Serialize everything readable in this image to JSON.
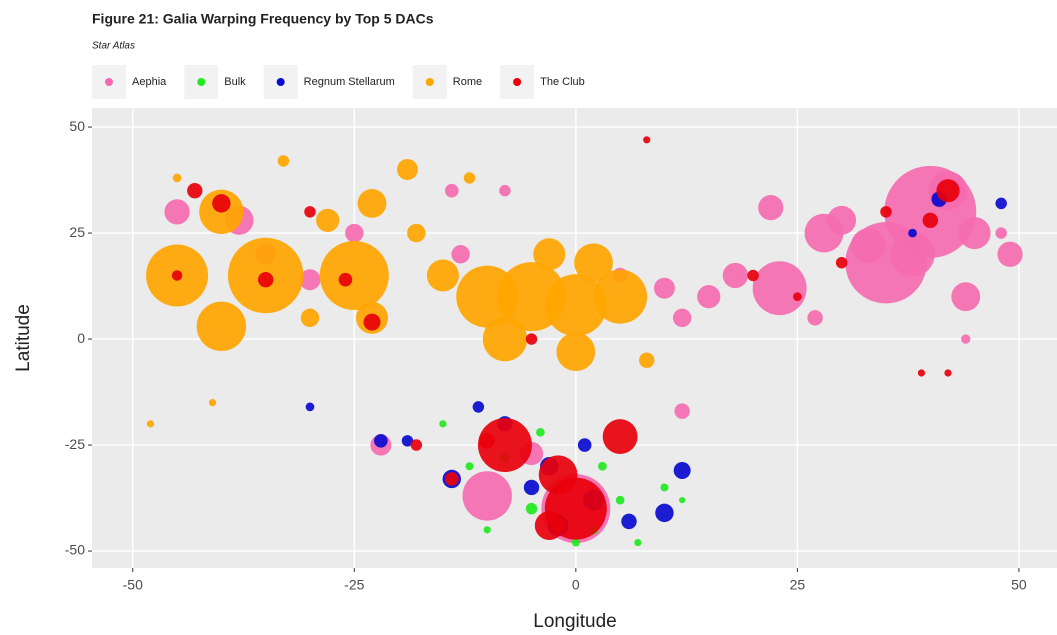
{
  "chart_data": {
    "type": "scatter",
    "title": "Figure 21: Galia Warping Frequency by Top 5 DACs",
    "subtitle": "Star Atlas",
    "x_label": "Longitude",
    "y_label": "Latitude",
    "xlim": [
      -54.6,
      54.3
    ],
    "ylim": [
      -54.0,
      54.5
    ],
    "xticks": [
      -50,
      -25,
      0,
      25,
      50
    ],
    "yticks": [
      -50,
      -25,
      0,
      25,
      50
    ],
    "grid": true,
    "legend": "top",
    "series": [
      {
        "name": "Aephia",
        "color": "#f46bb0",
        "x": [
          40,
          35,
          23,
          28,
          45,
          49,
          44,
          22,
          30,
          33,
          38,
          18,
          15,
          10,
          12,
          42,
          -45,
          -38,
          -30,
          -13,
          -8,
          -10,
          -22,
          0,
          -35,
          5,
          27,
          44,
          -5,
          12,
          -14,
          48,
          -25
        ],
        "y": [
          30,
          18,
          12,
          25,
          25,
          20,
          10,
          31,
          28,
          22,
          20,
          15,
          10,
          12,
          5,
          35,
          30,
          28,
          14,
          20,
          35,
          -37,
          -25,
          -40,
          20,
          15,
          5,
          0,
          -27,
          -17,
          35,
          25,
          25
        ],
        "sizes": [
          900,
          700,
          300,
          150,
          100,
          60,
          80,
          60,
          80,
          120,
          200,
          60,
          50,
          40,
          30,
          150,
          60,
          80,
          40,
          30,
          10,
          250,
          40,
          500,
          40,
          20,
          20,
          6,
          50,
          20,
          15,
          10,
          30
        ]
      },
      {
        "name": "Bulk",
        "color": "#22e822",
        "x": [
          -5,
          -2,
          2,
          5,
          -8,
          -12,
          7,
          10,
          -4,
          0,
          -15,
          12,
          3,
          -10
        ],
        "y": [
          -40,
          -35,
          -45,
          -38,
          -28,
          -30,
          -48,
          -35,
          -22,
          -48,
          -20,
          -38,
          -30,
          -45
        ],
        "sizes": [
          10,
          8,
          6,
          5,
          6,
          4,
          3,
          4,
          5,
          4,
          3,
          2,
          5,
          3
        ]
      },
      {
        "name": "Regnum Stellarum",
        "color": "#0a0ad0",
        "x": [
          -2,
          -14,
          10,
          12,
          -8,
          -3,
          2,
          6,
          -22,
          -19,
          41,
          48,
          -5,
          -11,
          1,
          -30,
          38
        ],
        "y": [
          -44,
          -33,
          -41,
          -31,
          -20,
          -30,
          -38,
          -43,
          -24,
          -24,
          33,
          32,
          -35,
          -16,
          -25,
          -16,
          25
        ],
        "sizes": [
          40,
          30,
          30,
          25,
          20,
          30,
          40,
          20,
          15,
          10,
          20,
          10,
          20,
          10,
          15,
          5,
          5
        ]
      },
      {
        "name": "Rome",
        "color": "#ffa500",
        "x": [
          -45,
          -40,
          -35,
          -40,
          -25,
          -23,
          -23,
          -19,
          -10,
          -5,
          0,
          5,
          2,
          -8,
          0,
          -15,
          -28,
          -33,
          -12,
          -45,
          -48,
          -41,
          8,
          -30,
          -18,
          -3
        ],
        "y": [
          15,
          3,
          15,
          30,
          15,
          5,
          32,
          40,
          10,
          10,
          8,
          10,
          18,
          0,
          -3,
          15,
          28,
          42,
          38,
          38,
          -20,
          -15,
          -5,
          5,
          25,
          20
        ],
        "sizes": [
          400,
          250,
          600,
          200,
          500,
          100,
          80,
          40,
          400,
          500,
          400,
          300,
          150,
          200,
          150,
          100,
          50,
          10,
          10,
          5,
          3,
          3,
          20,
          30,
          30,
          100
        ]
      },
      {
        "name": "The Club",
        "color": "#e8000b",
        "x": [
          -8,
          0,
          5,
          -2,
          -3,
          -43,
          -40,
          -23,
          -35,
          42,
          40,
          20,
          30,
          35,
          -14,
          -10,
          8,
          -26,
          -5,
          -45,
          39,
          42,
          -18,
          25,
          -30
        ],
        "y": [
          -25,
          -40,
          -23,
          -32,
          -44,
          35,
          32,
          4,
          14,
          35,
          28,
          15,
          18,
          30,
          -33,
          -24,
          47,
          14,
          0,
          15,
          -8,
          -8,
          -25,
          10,
          30
        ],
        "sizes": [
          300,
          400,
          120,
          150,
          80,
          20,
          30,
          25,
          20,
          50,
          20,
          10,
          10,
          10,
          15,
          20,
          3,
          15,
          10,
          8,
          3,
          3,
          10,
          5,
          10
        ]
      }
    ]
  }
}
